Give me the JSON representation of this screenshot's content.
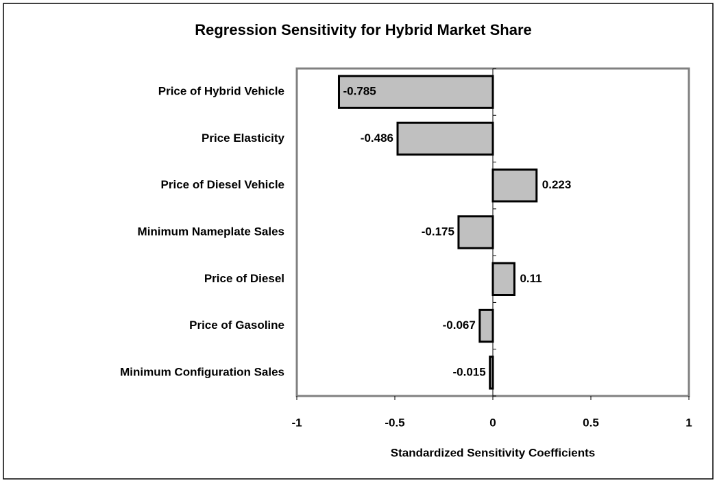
{
  "chart_data": {
    "type": "bar",
    "orientation": "horizontal",
    "title": "Regression Sensitivity for Hybrid Market Share",
    "categories": [
      "Price of Hybrid Vehicle",
      "Price Elasticity",
      "Price of Diesel Vehicle",
      "Minimum Nameplate Sales",
      "Price of Diesel",
      "Price of Gasoline",
      "Minimum Configuration Sales"
    ],
    "values": [
      -0.785,
      -0.486,
      0.223,
      -0.175,
      0.11,
      -0.067,
      -0.015
    ],
    "color": "#c0c0c0",
    "xlabel": "Standardized Sensitivity Coefficients",
    "xlim": [
      -1,
      1
    ],
    "xticks": [
      -1,
      -0.5,
      0,
      0.5,
      1
    ]
  }
}
